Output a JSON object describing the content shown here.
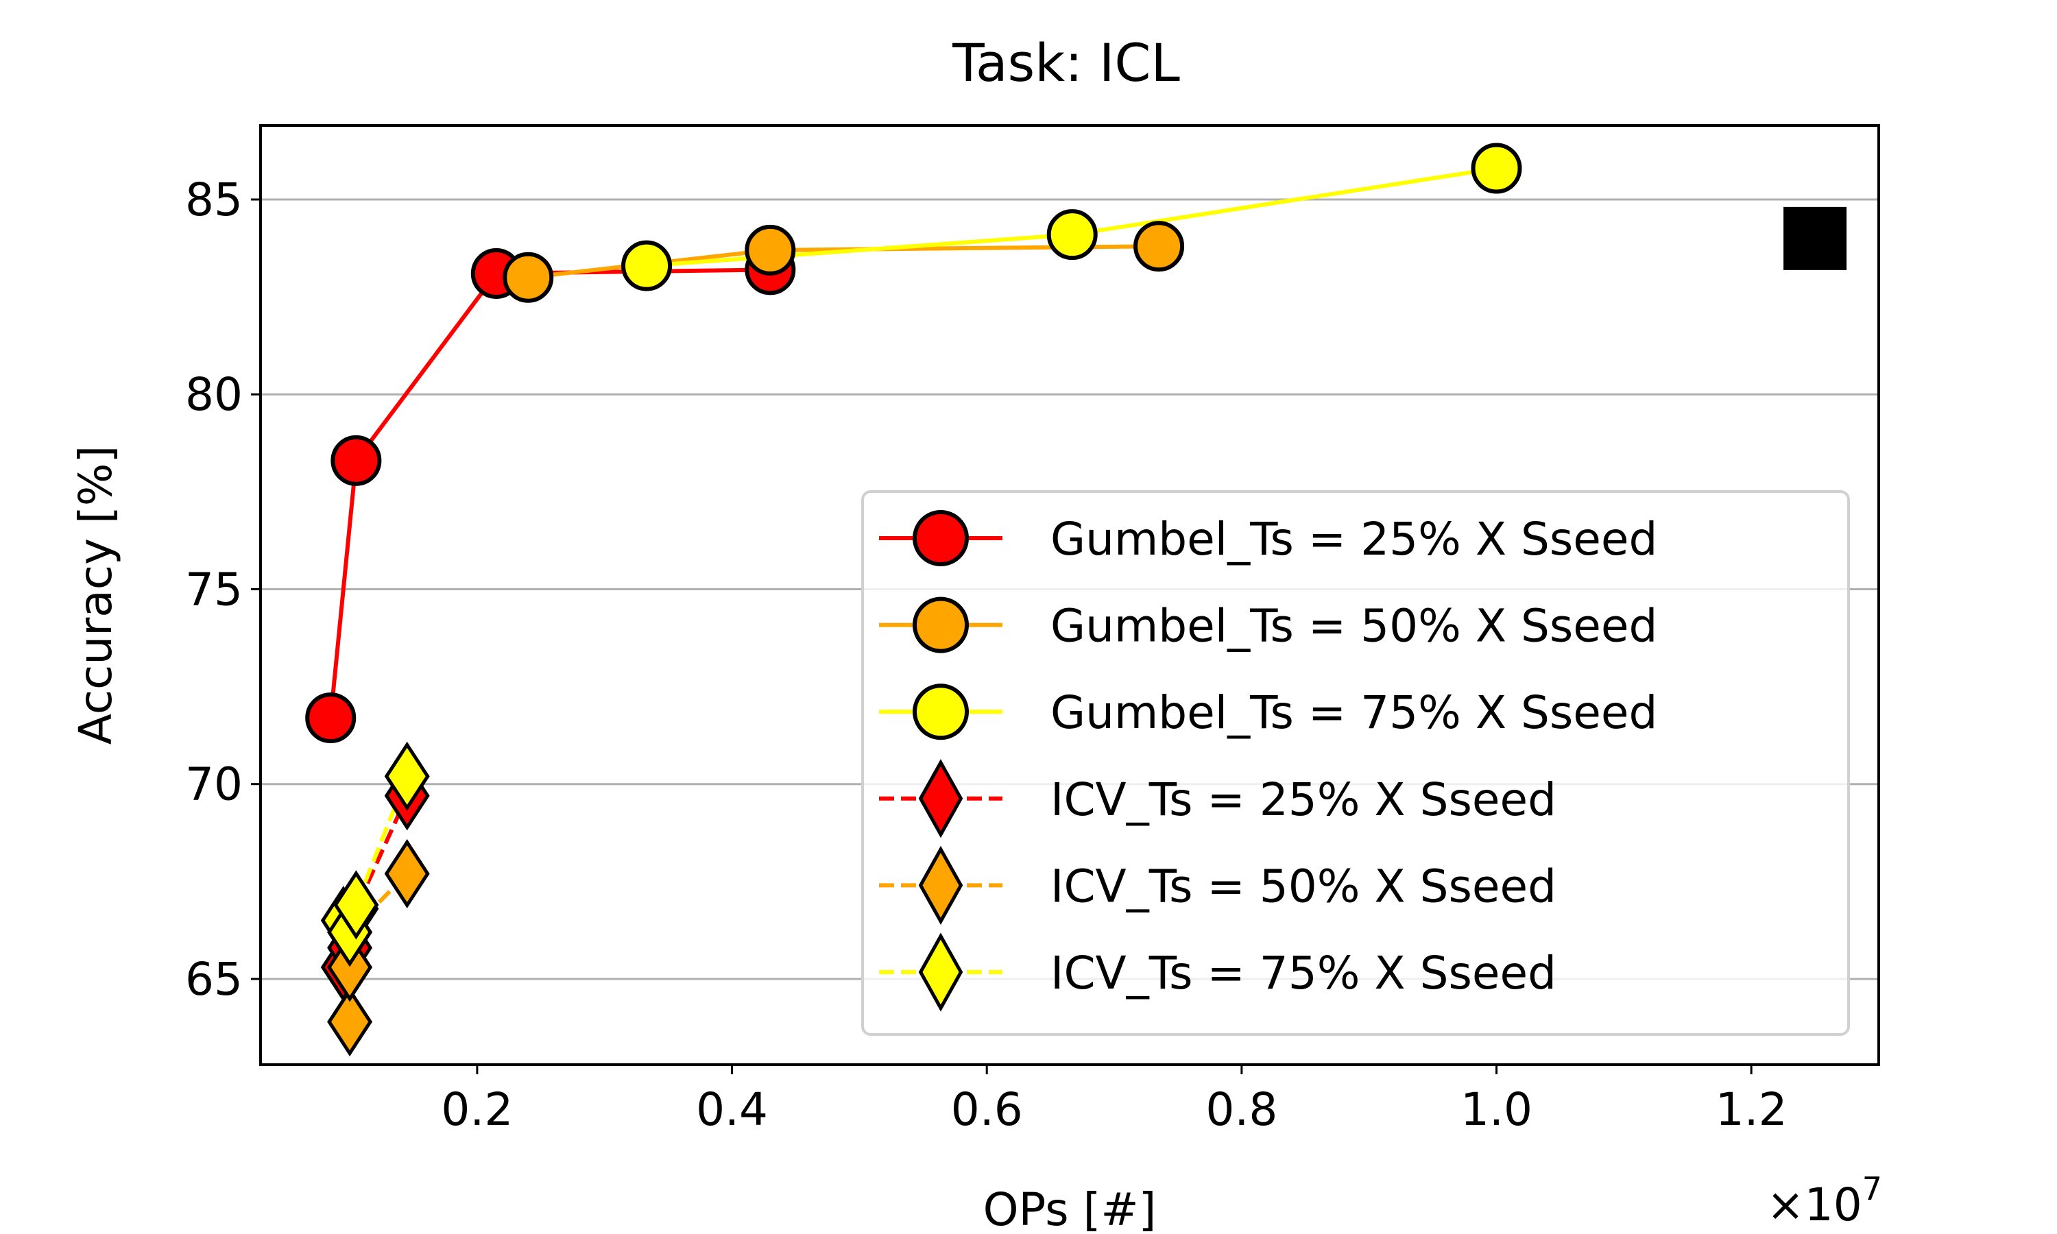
{
  "chart_data": {
    "type": "scatter",
    "title": "Task: ICL",
    "xlabel": "OPs [#]",
    "ylabel": "Accuracy [%]",
    "x_offset_label": "×10",
    "x_offset_exponent": "7",
    "xlim": [
      0.03,
      1.3
    ],
    "ylim": [
      62.8,
      86.9
    ],
    "xticks": [
      0.2,
      0.4,
      0.6,
      0.8,
      1.0,
      1.2
    ],
    "xtick_labels": [
      "0.2",
      "0.4",
      "0.6",
      "0.8",
      "1.0",
      "1.2"
    ],
    "yticks": [
      65,
      70,
      75,
      80,
      85
    ],
    "ytick_labels": [
      "65",
      "70",
      "75",
      "80",
      "85"
    ],
    "grid": "horizontal",
    "legend_position": "lower-right",
    "series": [
      {
        "name": "Gumbel_Ts = 25% X Sseed",
        "color": "#ff0000",
        "marker": "circle",
        "linestyle": "solid",
        "x": [
          0.085,
          0.105,
          0.215,
          0.43
        ],
        "y": [
          71.7,
          78.3,
          83.1,
          83.2
        ]
      },
      {
        "name": "Gumbel_Ts = 50% X Sseed",
        "color": "#ffa500",
        "marker": "circle",
        "linestyle": "solid",
        "x": [
          0.24,
          0.43,
          0.735
        ],
        "y": [
          83.0,
          83.7,
          83.8
        ]
      },
      {
        "name": "Gumbel_Ts = 75% X Sseed",
        "color": "#ffff00",
        "marker": "circle",
        "linestyle": "solid",
        "x": [
          0.333,
          0.667,
          1.0
        ],
        "y": [
          83.3,
          84.1,
          85.8
        ]
      },
      {
        "name": "ICV_Ts = 25% X Sseed",
        "color": "#ff0000",
        "marker": "diamond",
        "linestyle": "dashed",
        "x": [
          0.095,
          0.1,
          0.105,
          0.145
        ],
        "y": [
          65.3,
          65.8,
          66.8,
          69.7
        ]
      },
      {
        "name": "ICV_Ts = 50% X Sseed",
        "color": "#ffa500",
        "marker": "diamond",
        "linestyle": "dashed",
        "x": [
          0.1,
          0.1,
          0.1,
          0.145
        ],
        "y": [
          63.9,
          65.3,
          66.2,
          67.7
        ]
      },
      {
        "name": "ICV_Ts = 75% X Sseed",
        "color": "#ffff00",
        "marker": "diamond",
        "linestyle": "dashed",
        "x": [
          0.095,
          0.1,
          0.105,
          0.145
        ],
        "y": [
          66.5,
          66.2,
          66.9,
          70.2
        ]
      }
    ],
    "reference_point": {
      "name": "reference",
      "marker": "square",
      "color": "#000000",
      "x": 1.25,
      "y": 84.0
    }
  }
}
